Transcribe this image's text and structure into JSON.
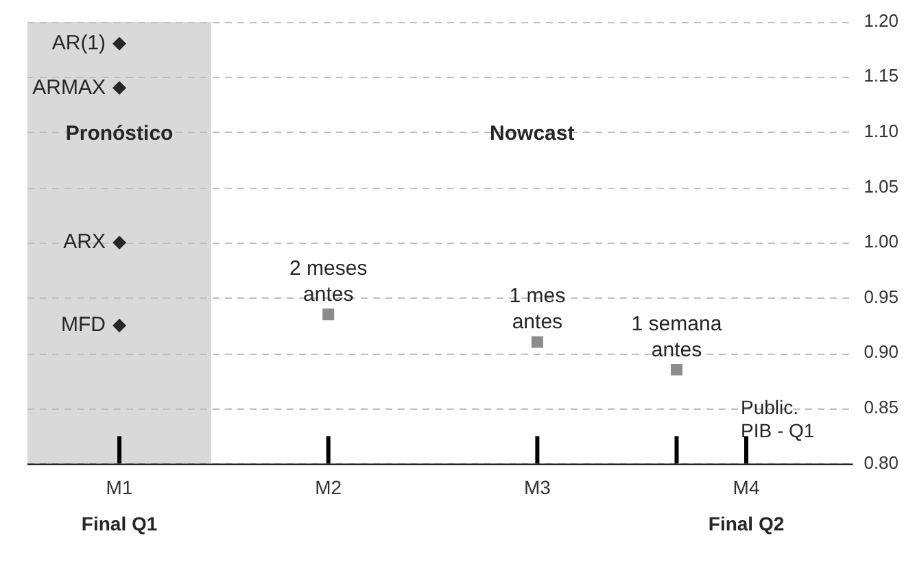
{
  "chart_data": {
    "type": "scatter",
    "categories": [
      "M1",
      null,
      null,
      "M2",
      null,
      null,
      "M3",
      null,
      null,
      "M4"
    ],
    "ylim": [
      0.8,
      1.2
    ],
    "yticks": [
      {
        "value": 0.8,
        "label": "0.80"
      },
      {
        "value": 0.85,
        "label": "0.85"
      },
      {
        "value": 0.9,
        "label": "0.90"
      },
      {
        "value": 0.95,
        "label": "0.95"
      },
      {
        "value": 1.0,
        "label": "1.00"
      },
      {
        "value": 1.05,
        "label": "1.05"
      },
      {
        "value": 1.1,
        "label": "1.10"
      },
      {
        "value": 1.15,
        "label": "1.15"
      },
      {
        "value": 1.2,
        "label": "1.20"
      }
    ],
    "grid": "y",
    "legend": false,
    "series": [
      {
        "marker": "diamond",
        "color": "#262626",
        "x": [
          "M1",
          "M1",
          "M1",
          "M1"
        ],
        "values": [
          1.18,
          1.14,
          1.0,
          0.925
        ]
      },
      {
        "marker": "square",
        "color": "#8c8c8c",
        "values": [
          null,
          null,
          null,
          0.935,
          null,
          null,
          0.91,
          null,
          0.885,
          null
        ]
      }
    ],
    "annotations": [
      "AR(1)",
      "ARMAX",
      "ARX",
      "MFD",
      "2 meses antes",
      "1 mes antes",
      "1 semana antes",
      "Pronóstico",
      "Nowcast",
      "Public. PIB - Q1",
      "Final Q1",
      "Final Q2"
    ]
  }
}
